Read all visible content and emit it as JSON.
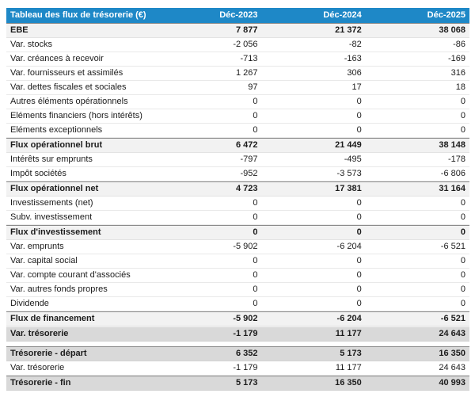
{
  "colors": {
    "header_bg": "#1e88c7",
    "header_text": "#ffffff",
    "subtotal_row_bg": "#f2f2f2",
    "total_row_bg": "#d9d9d9"
  },
  "table": {
    "title": "Tableau des flux de trésorerie (€)",
    "columns": [
      "Déc-2023",
      "Déc-2024",
      "Déc-2025"
    ],
    "rows": [
      {
        "label": "EBE",
        "values": [
          "7 877",
          "21 372",
          "38 068"
        ],
        "style": "subtotal"
      },
      {
        "label": "Var. stocks",
        "values": [
          "-2 056",
          "-82",
          "-86"
        ],
        "style": "normal"
      },
      {
        "label": "Var. créances à recevoir",
        "values": [
          "-713",
          "-163",
          "-169"
        ],
        "style": "normal"
      },
      {
        "label": "Var. fournisseurs et assimilés",
        "values": [
          "1 267",
          "306",
          "316"
        ],
        "style": "normal"
      },
      {
        "label": "Var. dettes fiscales et sociales",
        "values": [
          "97",
          "17",
          "18"
        ],
        "style": "normal"
      },
      {
        "label": "Autres éléments opérationnels",
        "values": [
          "0",
          "0",
          "0"
        ],
        "style": "normal"
      },
      {
        "label": "Eléments financiers (hors intérêts)",
        "values": [
          "0",
          "0",
          "0"
        ],
        "style": "normal"
      },
      {
        "label": "Eléments exceptionnels",
        "values": [
          "0",
          "0",
          "0"
        ],
        "style": "normal"
      },
      {
        "label": "Flux opérationnel brut",
        "values": [
          "6 472",
          "21 449",
          "38 148"
        ],
        "style": "subtotal"
      },
      {
        "label": "Intérêts sur emprunts",
        "values": [
          "-797",
          "-495",
          "-178"
        ],
        "style": "normal"
      },
      {
        "label": "Impôt sociétés",
        "values": [
          "-952",
          "-3 573",
          "-6 806"
        ],
        "style": "normal"
      },
      {
        "label": "Flux opérationnel net",
        "values": [
          "4 723",
          "17 381",
          "31 164"
        ],
        "style": "subtotal"
      },
      {
        "label": "Investissements (net)",
        "values": [
          "0",
          "0",
          "0"
        ],
        "style": "normal"
      },
      {
        "label": "Subv. investissement",
        "values": [
          "0",
          "0",
          "0"
        ],
        "style": "normal"
      },
      {
        "label": "Flux d'investissement",
        "values": [
          "0",
          "0",
          "0"
        ],
        "style": "subtotal"
      },
      {
        "label": "Var. emprunts",
        "values": [
          "-5 902",
          "-6 204",
          "-6 521"
        ],
        "style": "normal"
      },
      {
        "label": "Var. capital social",
        "values": [
          "0",
          "0",
          "0"
        ],
        "style": "normal"
      },
      {
        "label": "Var. compte courant d'associés",
        "values": [
          "0",
          "0",
          "0"
        ],
        "style": "normal"
      },
      {
        "label": "Var. autres fonds propres",
        "values": [
          "0",
          "0",
          "0"
        ],
        "style": "normal"
      },
      {
        "label": "Dividende",
        "values": [
          "0",
          "0",
          "0"
        ],
        "style": "normal"
      },
      {
        "label": "Flux de financement",
        "values": [
          "-5 902",
          "-6 204",
          "-6 521"
        ],
        "style": "subtotal"
      },
      {
        "label": "Var. trésorerie",
        "values": [
          "-1 179",
          "11 177",
          "24 643"
        ],
        "style": "highlight"
      },
      {
        "label": "",
        "values": [
          "",
          "",
          ""
        ],
        "style": "spacer"
      },
      {
        "label": "Trésorerie - départ",
        "values": [
          "6 352",
          "5 173",
          "16 350"
        ],
        "style": "total"
      },
      {
        "label": "Var. trésorerie",
        "values": [
          "-1 179",
          "11 177",
          "24 643"
        ],
        "style": "normal"
      },
      {
        "label": "Trésorerie - fin",
        "values": [
          "5 173",
          "16 350",
          "40 993"
        ],
        "style": "total"
      }
    ]
  },
  "chart_data": {
    "type": "table",
    "title": "Tableau des flux de trésorerie (€)",
    "columns": [
      "Déc-2023",
      "Déc-2024",
      "Déc-2025"
    ],
    "rows": [
      [
        "EBE",
        7877,
        21372,
        38068
      ],
      [
        "Var. stocks",
        -2056,
        -82,
        -86
      ],
      [
        "Var. créances à recevoir",
        -713,
        -163,
        -169
      ],
      [
        "Var. fournisseurs et assimilés",
        1267,
        306,
        316
      ],
      [
        "Var. dettes fiscales et sociales",
        97,
        17,
        18
      ],
      [
        "Autres éléments opérationnels",
        0,
        0,
        0
      ],
      [
        "Eléments financiers (hors intérêts)",
        0,
        0,
        0
      ],
      [
        "Eléments exceptionnels",
        0,
        0,
        0
      ],
      [
        "Flux opérationnel brut",
        6472,
        21449,
        38148
      ],
      [
        "Intérêts sur emprunts",
        -797,
        -495,
        -178
      ],
      [
        "Impôt sociétés",
        -952,
        -3573,
        -6806
      ],
      [
        "Flux opérationnel net",
        4723,
        17381,
        31164
      ],
      [
        "Investissements (net)",
        0,
        0,
        0
      ],
      [
        "Subv. investissement",
        0,
        0,
        0
      ],
      [
        "Flux d'investissement",
        0,
        0,
        0
      ],
      [
        "Var. emprunts",
        -5902,
        -6204,
        -6521
      ],
      [
        "Var. capital social",
        0,
        0,
        0
      ],
      [
        "Var. compte courant d'associés",
        0,
        0,
        0
      ],
      [
        "Var. autres fonds propres",
        0,
        0,
        0
      ],
      [
        "Dividende",
        0,
        0,
        0
      ],
      [
        "Flux de financement",
        -5902,
        -6204,
        -6521
      ],
      [
        "Var. trésorerie",
        -1179,
        11177,
        24643
      ],
      [
        "Trésorerie - départ",
        6352,
        5173,
        16350
      ],
      [
        "Var. trésorerie",
        -1179,
        11177,
        24643
      ],
      [
        "Trésorerie - fin",
        5173,
        16350,
        40993
      ]
    ]
  }
}
